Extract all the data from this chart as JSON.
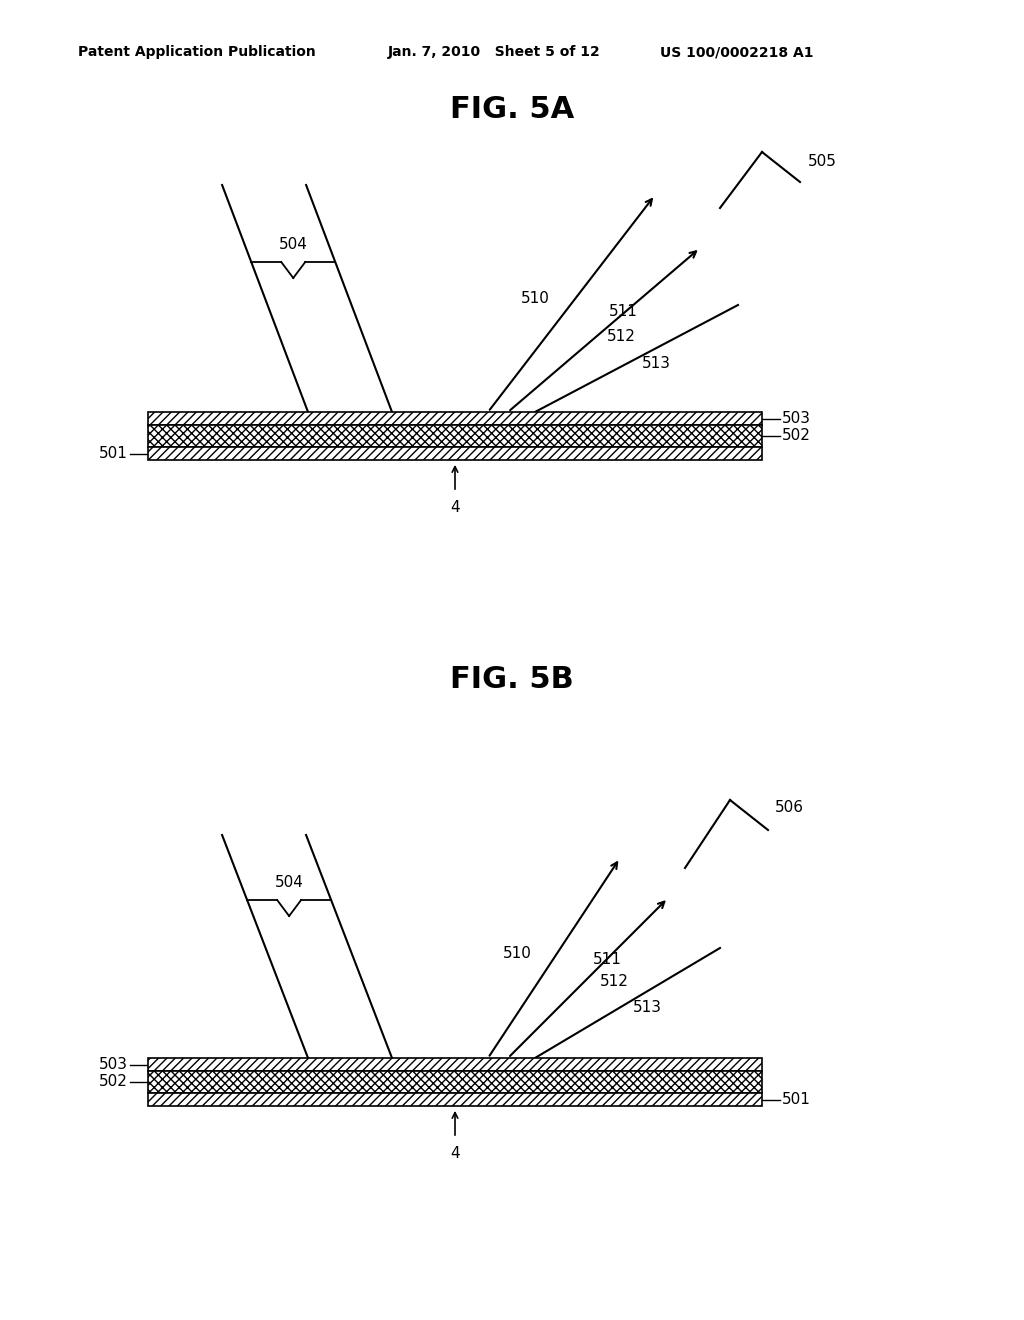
{
  "bg_color": "#ffffff",
  "text_color": "#000000",
  "header_left": "Patent Application Publication",
  "header_mid": "Jan. 7, 2010   Sheet 5 of 12",
  "header_right": "US 100/0002218 A1",
  "fig5a_title": "FIG. 5A",
  "fig5b_title": "FIG. 5B",
  "line_color": "#000000",
  "label_fontsize": 11,
  "title_fontsize": 22,
  "header_fontsize": 10
}
